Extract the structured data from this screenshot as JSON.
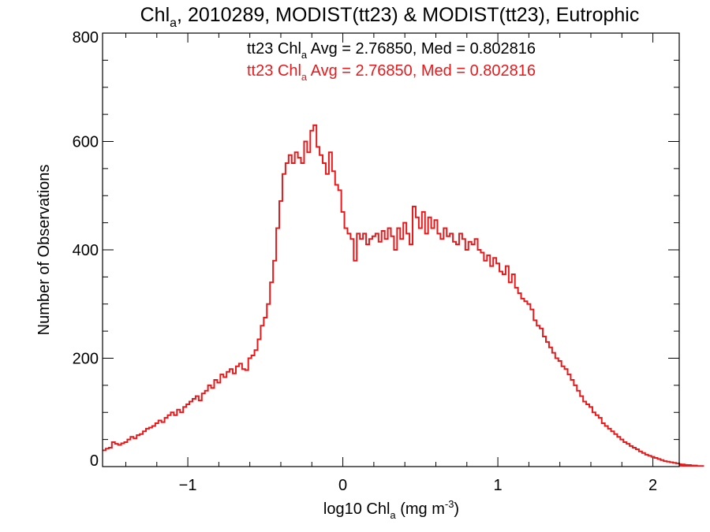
{
  "chart_data": {
    "type": "histogram",
    "title": {
      "prefix": "Chl",
      "sub": "a",
      "rest": ", 2010289, MODIST(tt23) & MODIST(tt23), Eutrophic"
    },
    "xlabel": {
      "prefix": "log10 Chl",
      "sub": "a",
      "mid": " (mg m",
      "sup": "-3",
      "end": ")"
    },
    "ylabel": "Number of Observations",
    "xlim": [
      -1.55,
      2.17
    ],
    "ylim": [
      0,
      800
    ],
    "x_ticks": [
      {
        "value": -1,
        "label": "−1"
      },
      {
        "value": 0,
        "label": "0"
      },
      {
        "value": 1,
        "label": "1"
      },
      {
        "value": 2,
        "label": "2"
      }
    ],
    "y_ticks": [
      {
        "value": 0,
        "label": "0"
      },
      {
        "value": 200,
        "label": "200"
      },
      {
        "value": 400,
        "label": "400"
      },
      {
        "value": 600,
        "label": "600"
      },
      {
        "value": 800,
        "label": "800"
      }
    ],
    "x_minor_step": 0.2,
    "y_minor_step": 50,
    "annotations": [
      {
        "name": "tt23-black",
        "color": "#000000",
        "prefix": "tt23 Chl",
        "sub": "a",
        "rest": " Avg = 2.76850, Med = 0.802816"
      },
      {
        "name": "tt23-red",
        "color": "#e8191b",
        "prefix": "tt23 Chl",
        "sub": "a",
        "rest": " Avg = 2.76850, Med = 0.802816"
      }
    ],
    "series": [
      {
        "color": "#e8191b",
        "bin_start": -1.55,
        "bin_width": 0.02,
        "values": [
          30,
          33,
          35,
          45,
          42,
          40,
          43,
          45,
          50,
          55,
          52,
          58,
          60,
          65,
          70,
          72,
          75,
          80,
          85,
          82,
          90,
          95,
          100,
          95,
          105,
          100,
          110,
          115,
          120,
          125,
          130,
          122,
          135,
          140,
          150,
          145,
          160,
          155,
          170,
          165,
          175,
          180,
          172,
          185,
          190,
          180,
          178,
          200,
          205,
          215,
          235,
          260,
          275,
          300,
          340,
          380,
          440,
          490,
          540,
          560,
          575,
          560,
          580,
          570,
          560,
          600,
          580,
          620,
          630,
          590,
          575,
          560,
          540,
          580,
          545,
          520,
          510,
          470,
          440,
          430,
          420,
          380,
          430,
          420,
          430,
          410,
          420,
          425,
          430,
          415,
          435,
          420,
          440,
          425,
          400,
          440,
          420,
          450,
          430,
          410,
          480,
          460,
          440,
          470,
          430,
          460,
          440,
          455,
          430,
          420,
          440,
          425,
          430,
          415,
          410,
          430,
          420,
          400,
          415,
          410,
          420,
          400,
          395,
          380,
          390,
          370,
          385,
          375,
          360,
          355,
          370,
          340,
          355,
          330,
          320,
          310,
          305,
          300,
          290,
          270,
          260,
          255,
          240,
          230,
          220,
          210,
          200,
          195,
          185,
          180,
          170,
          160,
          150,
          140,
          130,
          120,
          115,
          110,
          100,
          95,
          90,
          80,
          75,
          70,
          65,
          60,
          55,
          50,
          45,
          42,
          38,
          35,
          32,
          28,
          25,
          22,
          20,
          18,
          16,
          14,
          12,
          10,
          9,
          8,
          7,
          6,
          5,
          4,
          4,
          3,
          3,
          2,
          2,
          1,
          1
        ]
      }
    ]
  }
}
